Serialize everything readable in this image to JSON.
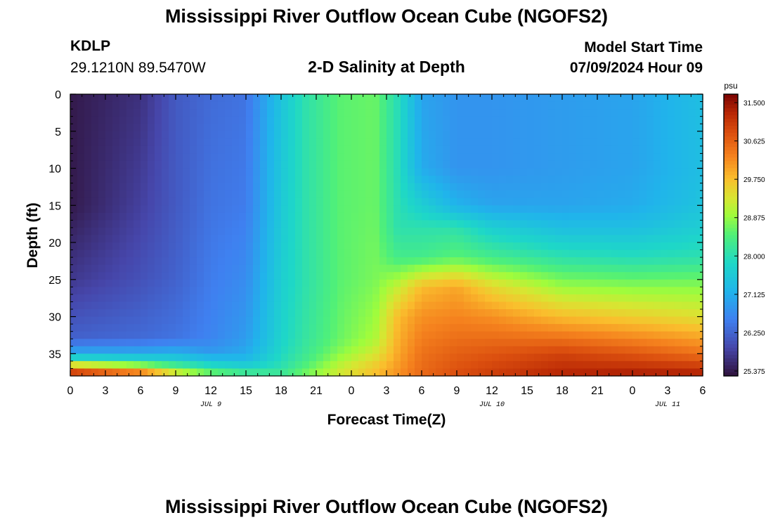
{
  "title": "Mississippi River Outflow Ocean Cube (NGOFS2)",
  "station": "KDLP",
  "coords": "29.1210N  89.5470W",
  "subtitle": "2-D Salinity at Depth",
  "model_start_label": "Model Start Time",
  "model_start_time": "07/09/2024 Hour 09",
  "footer_title": "Mississippi River Outflow Ocean Cube (NGOFS2)",
  "chart_data": {
    "type": "heatmap",
    "xlabel": "Forecast Time(Z)",
    "ylabel": "Depth (ft)",
    "x_ticks": [
      "0",
      "3",
      "6",
      "9",
      "12",
      "15",
      "18",
      "21",
      "0",
      "3",
      "6",
      "9",
      "12",
      "15",
      "18",
      "21",
      "0",
      "3",
      "6"
    ],
    "x_hours": [
      0,
      54
    ],
    "date_labels": [
      {
        "label": "JUL 9",
        "hour": 12
      },
      {
        "label": "JUL 10",
        "hour": 36
      },
      {
        "label": "JUL 11",
        "hour": 51
      }
    ],
    "y_ticks": [
      0,
      5,
      10,
      15,
      20,
      25,
      30,
      35
    ],
    "ylim": [
      0,
      38
    ],
    "y_inverted": true,
    "colorbar": {
      "unit": "psu",
      "min": 25.1,
      "max": 31.8,
      "ticks": [
        "31.500",
        "30.625",
        "29.750",
        "28.875",
        "28.000",
        "27.125",
        "26.250",
        "25.375"
      ],
      "colormap": "turbo"
    },
    "profiles": [
      {
        "hour": 0,
        "depth": [
          0,
          15,
          25,
          33,
          35,
          36,
          37,
          38
        ],
        "salinity": [
          25.2,
          25.2,
          25.6,
          26.1,
          27.0,
          28.3,
          30.5,
          31.5
        ]
      },
      {
        "hour": 6,
        "depth": [
          0,
          15,
          25,
          33,
          35,
          36,
          37,
          38
        ],
        "salinity": [
          25.5,
          25.7,
          25.9,
          26.2,
          27.0,
          28.0,
          29.5,
          31.0
        ]
      },
      {
        "hour": 9,
        "depth": [
          0,
          15,
          25,
          33,
          35,
          36,
          37,
          38
        ],
        "salinity": [
          26.0,
          26.0,
          26.1,
          26.3,
          27.1,
          27.8,
          28.6,
          29.8
        ]
      },
      {
        "hour": 12,
        "depth": [
          0,
          15,
          25,
          33,
          35,
          36,
          37,
          38
        ],
        "salinity": [
          26.2,
          26.3,
          26.4,
          26.5,
          26.8,
          27.5,
          28.0,
          29.0
        ]
      },
      {
        "hour": 15,
        "depth": [
          0,
          15,
          25,
          33,
          35,
          36,
          37,
          38
        ],
        "salinity": [
          26.3,
          26.4,
          26.6,
          26.8,
          27.0,
          27.3,
          27.8,
          28.5
        ]
      },
      {
        "hour": 18,
        "depth": [
          0,
          15,
          25,
          33,
          35,
          36,
          37,
          38
        ],
        "salinity": [
          27.4,
          27.5,
          27.6,
          27.7,
          27.8,
          27.9,
          28.0,
          28.3
        ]
      },
      {
        "hour": 20,
        "depth": [
          0,
          15,
          25,
          33,
          35,
          36,
          37,
          38
        ],
        "salinity": [
          28.0,
          28.0,
          28.0,
          28.1,
          28.2,
          28.3,
          28.5,
          28.7
        ]
      },
      {
        "hour": 23,
        "depth": [
          0,
          15,
          25,
          33,
          35,
          36,
          37,
          38
        ],
        "salinity": [
          28.5,
          28.5,
          28.5,
          28.6,
          28.8,
          29.0,
          29.2,
          29.3
        ]
      },
      {
        "hour": 26,
        "depth": [
          0,
          15,
          25,
          33,
          35,
          36,
          37,
          38
        ],
        "salinity": [
          28.6,
          28.6,
          28.7,
          29.0,
          29.3,
          29.5,
          29.7,
          29.8
        ]
      },
      {
        "hour": 28,
        "depth": [
          0,
          10,
          18,
          22,
          26,
          30,
          35,
          38
        ],
        "salinity": [
          27.9,
          27.9,
          28.0,
          28.3,
          29.2,
          29.8,
          30.0,
          30.2
        ]
      },
      {
        "hour": 30,
        "depth": [
          0,
          10,
          15,
          18,
          22,
          26,
          30,
          35,
          38
        ],
        "salinity": [
          26.9,
          27.0,
          27.6,
          28.0,
          28.3,
          29.8,
          30.2,
          30.5,
          30.6
        ]
      },
      {
        "hour": 33,
        "depth": [
          0,
          10,
          15,
          18,
          22,
          26,
          30,
          35,
          38
        ],
        "salinity": [
          26.7,
          26.7,
          27.1,
          28.0,
          28.5,
          30.0,
          30.3,
          30.7,
          30.9
        ]
      },
      {
        "hour": 36,
        "depth": [
          0,
          10,
          15,
          18,
          22,
          26,
          30,
          35,
          38
        ],
        "salinity": [
          26.7,
          26.7,
          26.9,
          27.6,
          28.3,
          29.5,
          30.2,
          30.8,
          31.1
        ]
      },
      {
        "hour": 42,
        "depth": [
          0,
          10,
          15,
          18,
          22,
          26,
          30,
          35,
          38
        ],
        "salinity": [
          26.8,
          26.8,
          26.9,
          27.3,
          28.0,
          28.9,
          29.8,
          31.0,
          31.4
        ]
      },
      {
        "hour": 48,
        "depth": [
          0,
          10,
          15,
          18,
          22,
          26,
          30,
          35,
          38
        ],
        "salinity": [
          26.9,
          26.9,
          27.0,
          27.3,
          27.9,
          28.8,
          29.6,
          30.8,
          31.5
        ]
      },
      {
        "hour": 54,
        "depth": [
          0,
          10,
          15,
          18,
          22,
          26,
          30,
          35,
          38
        ],
        "salinity": [
          27.3,
          27.3,
          27.4,
          27.6,
          28.0,
          28.8,
          29.4,
          30.5,
          31.5
        ]
      }
    ]
  }
}
